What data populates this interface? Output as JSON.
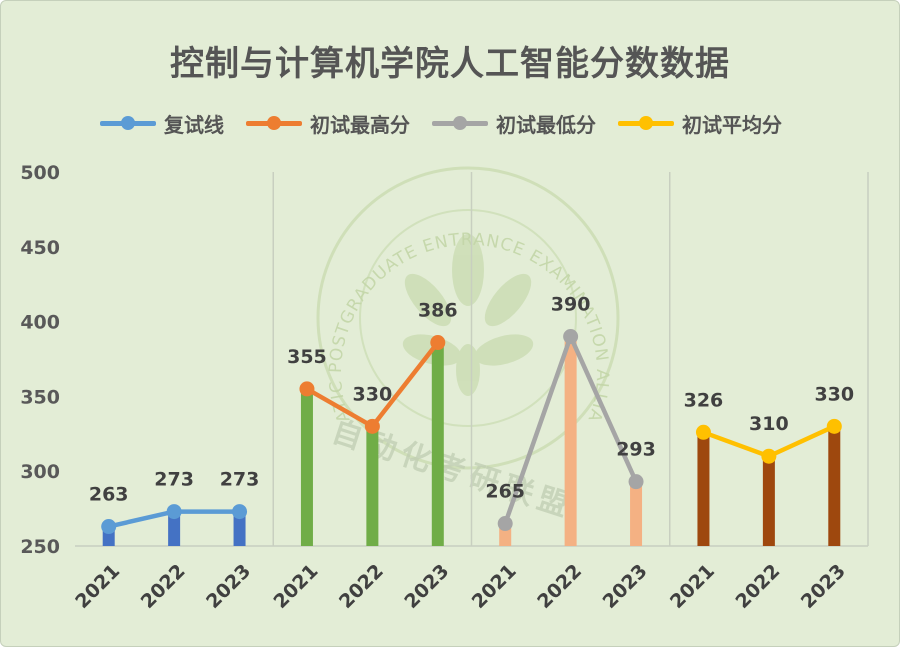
{
  "chart_data": {
    "type": "bar+line",
    "title": "控制与计算机学院人工智能分数数据",
    "ylim": [
      250,
      500
    ],
    "yticks": [
      250,
      300,
      350,
      400,
      450,
      500
    ],
    "grid": false,
    "legend": "top",
    "groups": [
      {
        "name": "复试线",
        "color": "#5b9bd5",
        "bar_color": "#4472c4",
        "categories": [
          "2021",
          "2022",
          "2023"
        ],
        "values": [
          263,
          273,
          273
        ]
      },
      {
        "name": "初试最高分",
        "color": "#ed7d31",
        "bar_color": "#70ad47",
        "categories": [
          "2021",
          "2022",
          "2023"
        ],
        "values": [
          355,
          330,
          386
        ]
      },
      {
        "name": "初试最低分",
        "color": "#a5a5a5",
        "bar_color": "#f4b183",
        "categories": [
          "2021",
          "2022",
          "2023"
        ],
        "values": [
          265,
          390,
          293
        ]
      },
      {
        "name": "初试平均分",
        "color": "#ffc000",
        "bar_color": "#9e480e",
        "categories": [
          "2021",
          "2022",
          "2023"
        ],
        "values": [
          326,
          310,
          330
        ]
      }
    ]
  },
  "watermark": {
    "ring_text": "ATIC POSTGRADUATE ENTRANCE EXAMINATION ALLIANCE",
    "cn_text": "自动化考研联盟"
  }
}
